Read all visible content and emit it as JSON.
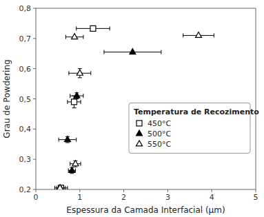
{
  "chart_data": {
    "type": "scatter",
    "xlabel": "Espessura da Camada Interfacial (μm)",
    "ylabel": "Grau de Powdering",
    "xlim": [
      0,
      5
    ],
    "ylim": [
      0.2,
      0.8
    ],
    "xticks": [
      0,
      1,
      2,
      3,
      4,
      5
    ],
    "yticks": [
      {
        "value": 0.2,
        "label": "0,2"
      },
      {
        "value": 0.3,
        "label": "0,3"
      },
      {
        "value": 0.4,
        "label": "0,4"
      },
      {
        "value": 0.5,
        "label": "0,5"
      },
      {
        "value": 0.6,
        "label": "0,6"
      },
      {
        "value": 0.7,
        "label": "0,7"
      },
      {
        "value": 0.8,
        "label": "0,8"
      }
    ],
    "grid": false,
    "legend": "lower-right",
    "legend_title": "Temperatura de Recozimento",
    "series": [
      {
        "name": "450°C",
        "color": "#000000",
        "marker": "square-open",
        "x": [
          1.3,
          0.87,
          0.57
        ],
        "values": [
          0.733,
          0.49,
          0.205
        ],
        "xerr_lo": [
          0.38,
          0.15,
          0.1
        ],
        "xerr_hi": [
          0.38,
          0.15,
          0.15
        ],
        "yerr": [
          0.0,
          0.02,
          0.005
        ]
      },
      {
        "name": "500°C",
        "color": "#000000",
        "marker": "triangle-filled",
        "x": [
          2.2,
          0.93,
          0.72,
          0.82
        ],
        "values": [
          0.655,
          0.51,
          0.365,
          0.263
        ],
        "xerr_lo": [
          0.65,
          0.15,
          0.2,
          0.08
        ],
        "xerr_hi": [
          0.65,
          0.15,
          0.2,
          0.08
        ],
        "yerr": [
          0.0,
          0.01,
          0.01,
          0.01
        ]
      },
      {
        "name": "550°C",
        "color": "#000000",
        "marker": "triangle-open",
        "x": [
          3.7,
          0.88,
          1.0,
          0.9,
          0.55
        ],
        "values": [
          0.71,
          0.705,
          0.585,
          0.285,
          0.205
        ],
        "xerr_lo": [
          0.35,
          0.2,
          0.25,
          0.12,
          0.12
        ],
        "xerr_hi": [
          0.35,
          0.2,
          0.25,
          0.12,
          0.12
        ],
        "yerr": [
          0.0,
          0.0,
          0.015,
          0.01,
          0.005
        ]
      }
    ]
  }
}
